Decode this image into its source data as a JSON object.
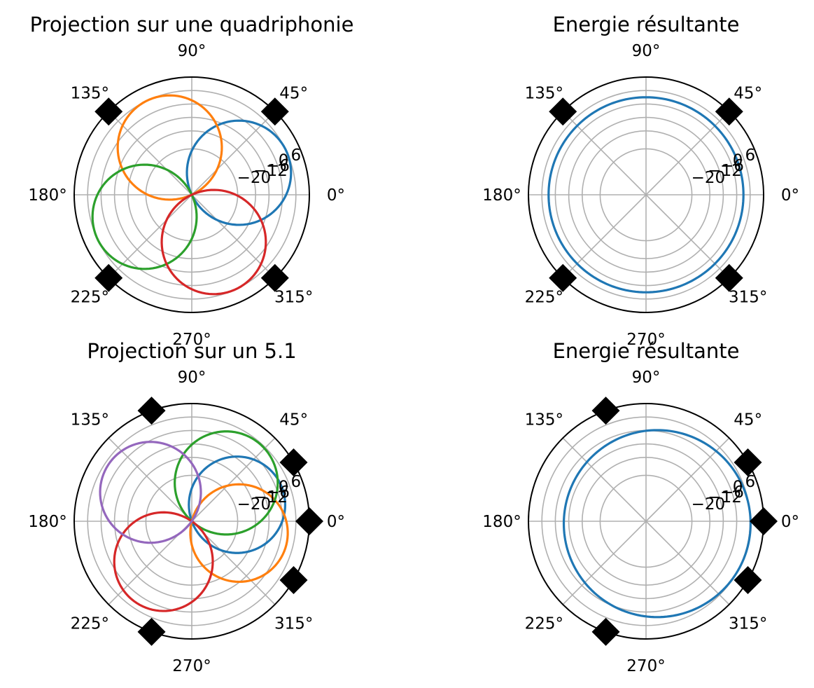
{
  "figure": {
    "colors": [
      "#1f77b4",
      "#ff7f0e",
      "#2ca02c",
      "#d62728",
      "#9467bd"
    ]
  },
  "chart_data": [
    {
      "type": "line",
      "polar": true,
      "title": "Projection sur une quadriphonie",
      "angle_ticks": [
        "0°",
        "45°",
        "90°",
        "135°",
        "180°",
        "225°",
        "270°",
        "315°"
      ],
      "radial_ticks": [
        "−20",
        "−12",
        "−6",
        "0",
        "6"
      ],
      "rlim": [
        -30,
        12
      ],
      "grid": true,
      "speakers_deg": [
        45,
        135,
        225,
        315
      ],
      "series": [
        {
          "color": "#1f77b4",
          "pattern": "cardioid",
          "direction_deg": 25,
          "peak": 6,
          "min": -30
        },
        {
          "color": "#ff7f0e",
          "pattern": "cardioid",
          "direction_deg": 115,
          "peak": 6,
          "min": -30
        },
        {
          "color": "#2ca02c",
          "pattern": "cardioid",
          "direction_deg": 205,
          "peak": 6,
          "min": -30
        },
        {
          "color": "#d62728",
          "pattern": "cardioid",
          "direction_deg": 295,
          "peak": 6,
          "min": -30
        }
      ]
    },
    {
      "type": "line",
      "polar": true,
      "title": "Energie résultante",
      "angle_ticks": [
        "0°",
        "45°",
        "90°",
        "135°",
        "180°",
        "225°",
        "270°",
        "315°"
      ],
      "radial_ticks": [
        "−20",
        "−12",
        "−6",
        "0",
        "6"
      ],
      "rlim": [
        -30,
        12
      ],
      "grid": true,
      "speakers_deg": [
        45,
        135,
        225,
        315
      ],
      "series": [
        {
          "color": "#1f77b4",
          "pattern": "circle",
          "value": 3,
          "offset": [
            0,
            0
          ]
        }
      ]
    },
    {
      "type": "line",
      "polar": true,
      "title": "Projection sur un 5.1",
      "angle_ticks": [
        "0°",
        "45°",
        "90°",
        "135°",
        "180°",
        "225°",
        "270°",
        "315°"
      ],
      "radial_ticks": [
        "−20",
        "−12",
        "−6",
        "0",
        "6"
      ],
      "rlim": [
        -30,
        12
      ],
      "grid": true,
      "speakers_deg": [
        30,
        0,
        -30,
        -110,
        110
      ],
      "series": [
        {
          "color": "#1f77b4",
          "pattern": "cardioid",
          "direction_deg": 20,
          "peak": 2.5,
          "min": -30
        },
        {
          "color": "#ff7f0e",
          "pattern": "cardioid",
          "direction_deg": -14,
          "peak": 3,
          "min": -30
        },
        {
          "color": "#2ca02c",
          "pattern": "cardioid",
          "direction_deg": 48,
          "peak": 5.5,
          "min": -30
        },
        {
          "color": "#d62728",
          "pattern": "cardioid",
          "direction_deg": 235,
          "peak": 3.5,
          "min": -30
        },
        {
          "color": "#9467bd",
          "pattern": "cardioid",
          "direction_deg": 145,
          "peak": 4.5,
          "min": -30
        }
      ]
    },
    {
      "type": "line",
      "polar": true,
      "title": "Energie résultante",
      "angle_ticks": [
        "0°",
        "45°",
        "90°",
        "135°",
        "180°",
        "225°",
        "270°",
        "315°"
      ],
      "radial_ticks": [
        "−20",
        "−12",
        "−6",
        "0",
        "6"
      ],
      "rlim": [
        -30,
        12
      ],
      "grid": true,
      "speakers_deg": [
        30,
        0,
        -30,
        -110,
        110
      ],
      "series": [
        {
          "color": "#1f77b4",
          "pattern": "circle",
          "value": 1.2,
          "offset": [
            0.095,
            0.02
          ]
        }
      ]
    }
  ]
}
